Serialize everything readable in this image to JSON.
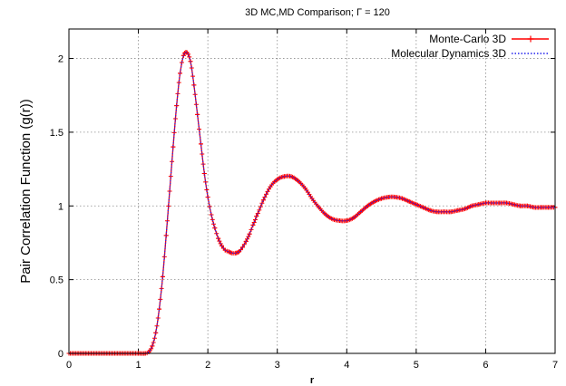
{
  "chart_data": {
    "type": "line",
    "title": "3D MC,MD Comparison; Γ = 120",
    "xlabel": "r",
    "ylabel": "Pair Correlation Function (g(r))",
    "xlim": [
      0,
      7
    ],
    "ylim": [
      0,
      2.2
    ],
    "xticks": [
      0,
      1,
      2,
      3,
      4,
      5,
      6,
      7
    ],
    "xtick_labels": [
      "0",
      "1",
      "2",
      "3",
      "4",
      "5",
      "6",
      "7"
    ],
    "yticks": [
      0,
      0.5,
      1,
      1.5,
      2
    ],
    "ytick_labels": [
      "0",
      "0.5",
      "1",
      "1.5",
      "2"
    ],
    "grid": true,
    "legend_position": "top-right",
    "x": [
      0.0,
      1.0,
      1.1,
      1.15,
      1.2,
      1.25,
      1.3,
      1.35,
      1.4,
      1.45,
      1.5,
      1.55,
      1.6,
      1.65,
      1.7,
      1.75,
      1.8,
      1.85,
      1.9,
      1.95,
      2.0,
      2.05,
      2.1,
      2.15,
      2.2,
      2.25,
      2.3,
      2.35,
      2.4,
      2.45,
      2.5,
      2.55,
      2.6,
      2.65,
      2.7,
      2.8,
      2.9,
      3.0,
      3.1,
      3.2,
      3.3,
      3.4,
      3.5,
      3.6,
      3.7,
      3.8,
      3.9,
      4.0,
      4.1,
      4.2,
      4.3,
      4.4,
      4.5,
      4.6,
      4.7,
      4.8,
      4.9,
      5.0,
      5.1,
      5.2,
      5.3,
      5.4,
      5.5,
      5.6,
      5.7,
      5.8,
      5.9,
      6.0,
      6.1,
      6.2,
      6.3,
      6.4,
      6.5,
      6.6,
      6.7,
      6.8,
      6.9,
      7.0
    ],
    "series": [
      {
        "name": "Monte-Carlo 3D",
        "color": "#ff0000",
        "marker": "plus",
        "values": [
          0.0,
          0.0,
          0.0,
          0.01,
          0.05,
          0.14,
          0.3,
          0.52,
          0.8,
          1.1,
          1.4,
          1.68,
          1.9,
          2.02,
          2.04,
          1.98,
          1.82,
          1.62,
          1.42,
          1.22,
          1.06,
          0.94,
          0.85,
          0.78,
          0.73,
          0.7,
          0.69,
          0.68,
          0.68,
          0.69,
          0.72,
          0.76,
          0.81,
          0.87,
          0.93,
          1.04,
          1.13,
          1.18,
          1.2,
          1.2,
          1.17,
          1.12,
          1.05,
          0.99,
          0.94,
          0.91,
          0.9,
          0.9,
          0.92,
          0.96,
          1.0,
          1.03,
          1.05,
          1.06,
          1.06,
          1.05,
          1.03,
          1.01,
          0.99,
          0.97,
          0.96,
          0.96,
          0.96,
          0.97,
          0.98,
          1.0,
          1.01,
          1.02,
          1.02,
          1.02,
          1.02,
          1.01,
          1.0,
          1.0,
          0.99,
          0.99,
          0.99,
          0.99
        ]
      },
      {
        "name": "Molecular Dynamics 3D",
        "color": "#2222ee",
        "marker": "none",
        "values": [
          0.0,
          0.0,
          0.0,
          0.01,
          0.05,
          0.14,
          0.3,
          0.52,
          0.8,
          1.1,
          1.4,
          1.68,
          1.9,
          2.02,
          2.04,
          1.98,
          1.82,
          1.62,
          1.42,
          1.22,
          1.06,
          0.94,
          0.85,
          0.78,
          0.73,
          0.7,
          0.69,
          0.68,
          0.68,
          0.69,
          0.72,
          0.76,
          0.81,
          0.87,
          0.93,
          1.04,
          1.13,
          1.18,
          1.2,
          1.2,
          1.17,
          1.12,
          1.05,
          0.99,
          0.94,
          0.91,
          0.9,
          0.9,
          0.92,
          0.96,
          1.0,
          1.03,
          1.05,
          1.06,
          1.06,
          1.05,
          1.03,
          1.01,
          0.99,
          0.97,
          0.96,
          0.96,
          0.96,
          0.97,
          0.98,
          1.0,
          1.01,
          1.02,
          1.02,
          1.02,
          1.02,
          1.01,
          1.0,
          1.0,
          0.99,
          0.99,
          0.99,
          0.99
        ]
      }
    ]
  }
}
